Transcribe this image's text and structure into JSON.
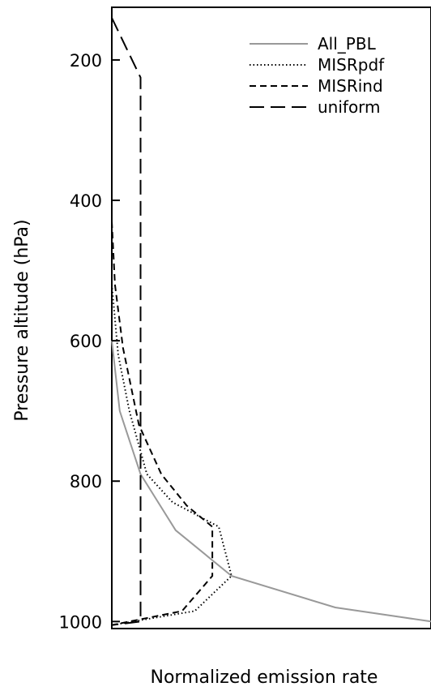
{
  "chart_data": {
    "type": "line",
    "title": "",
    "xlabel": "Normalized emission rate",
    "ylabel": "Pressure altitude (hPa)",
    "ylim": [
      1010,
      125
    ],
    "xlim": [
      0,
      1
    ],
    "y_ticks": [
      200,
      400,
      600,
      800,
      1000
    ],
    "y_tick_labels": [
      "200",
      "400",
      "600",
      "800",
      "1000"
    ],
    "legend_position": "top-right",
    "series": [
      {
        "name": "All_PBL",
        "color": "#999999",
        "dash": "solid",
        "points": [
          [
            0.0,
            600
          ],
          [
            0.025,
            700
          ],
          [
            0.09,
            790
          ],
          [
            0.2,
            870
          ],
          [
            0.375,
            935
          ],
          [
            0.7,
            980
          ],
          [
            1.0,
            1000
          ]
        ]
      },
      {
        "name": "MISRpdf",
        "color": "#000000",
        "dash": "dotted",
        "points": [
          [
            0.0,
            520
          ],
          [
            0.02,
            620
          ],
          [
            0.055,
            700
          ],
          [
            0.11,
            790
          ],
          [
            0.19,
            830
          ],
          [
            0.335,
            865
          ],
          [
            0.375,
            935
          ],
          [
            0.26,
            985
          ],
          [
            0.0,
            1005
          ]
        ]
      },
      {
        "name": "MISRind",
        "color": "#000000",
        "dash": "dashed",
        "points": [
          [
            0.0,
            430
          ],
          [
            0.01,
            520
          ],
          [
            0.035,
            610
          ],
          [
            0.085,
            720
          ],
          [
            0.155,
            790
          ],
          [
            0.235,
            835
          ],
          [
            0.315,
            865
          ],
          [
            0.315,
            935
          ],
          [
            0.22,
            985
          ],
          [
            0.0,
            1005
          ]
        ]
      },
      {
        "name": "uniform",
        "color": "#000000",
        "dash": "longdash",
        "points": [
          [
            0.0,
            140
          ],
          [
            0.09,
            225
          ],
          [
            0.09,
            1000
          ],
          [
            0.0,
            1005
          ]
        ]
      }
    ]
  }
}
